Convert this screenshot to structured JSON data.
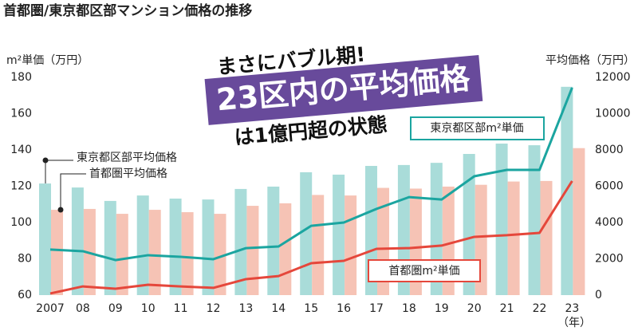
{
  "chart_data": {
    "type": "combo",
    "title": "首都圏/東京都区部マンション価格の推移",
    "ylabel": "m²単価（万円）",
    "y2label": "平均価格（万円）",
    "xlabel": "（年）",
    "annotations": [
      "まさにバブル期!",
      "23区内の平均価格",
      "は1億円超の状態"
    ],
    "categories": [
      "2007",
      "08",
      "09",
      "10",
      "11",
      "12",
      "13",
      "14",
      "15",
      "16",
      "17",
      "18",
      "19",
      "20",
      "21",
      "22",
      "23"
    ],
    "ylim": [
      60,
      180
    ],
    "yticks": [
      60,
      80,
      100,
      120,
      140,
      160,
      180
    ],
    "y2lim": [
      0,
      12000
    ],
    "y2ticks": [
      0,
      2000,
      4000,
      6000,
      8000,
      10000,
      12000
    ],
    "grid": false,
    "series": [
      {
        "name": "東京都区部平均価格",
        "type": "bar",
        "axis": "y2",
        "color": "#a9dcd9",
        "values": [
          6150,
          5930,
          5190,
          5490,
          5320,
          5270,
          5850,
          5980,
          6770,
          6640,
          7120,
          7170,
          7290,
          7780,
          8350,
          8260,
          11480
        ]
      },
      {
        "name": "首都圏平均価格",
        "type": "bar",
        "axis": "y2",
        "color": "#f6c3b5",
        "values": [
          4700,
          4750,
          4480,
          4700,
          4570,
          4480,
          4920,
          5060,
          5520,
          5490,
          5910,
          5870,
          5980,
          6080,
          6260,
          6290,
          8100
        ]
      },
      {
        "name": "東京都区部m²単価",
        "type": "line",
        "axis": "y",
        "color": "#1ba5a0",
        "values": [
          85.1,
          84.2,
          79.3,
          82.0,
          81.1,
          79.8,
          85.9,
          86.8,
          98.2,
          100.0,
          107.5,
          114.0,
          112.7,
          125.5,
          129.0,
          129.0,
          174.3
        ]
      },
      {
        "name": "首都圏m²単価",
        "type": "line",
        "axis": "y",
        "color": "#e5473b",
        "values": [
          60.9,
          64.8,
          63.5,
          65.7,
          64.8,
          64.0,
          68.8,
          70.5,
          77.6,
          78.9,
          85.5,
          85.9,
          87.3,
          92.1,
          93.0,
          94.3,
          122.9
        ]
      }
    ]
  }
}
